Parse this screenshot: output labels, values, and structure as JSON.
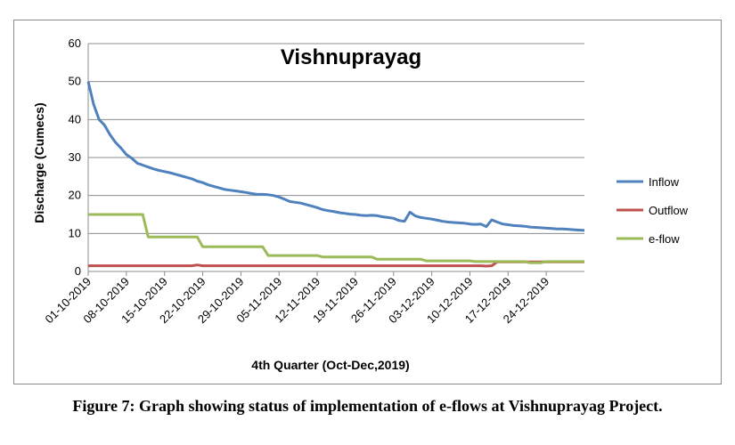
{
  "caption": "Figure 7: Graph showing status of implementation of e-flows at Vishnuprayag Project.",
  "chart_data": {
    "type": "line",
    "title": "Vishnuprayag",
    "xlabel": "4th Quarter (Oct-Dec,2019)",
    "ylabel": "Discharge (Cumecs)",
    "ylim": [
      0,
      60
    ],
    "yticks": [
      0,
      10,
      20,
      30,
      40,
      50,
      60
    ],
    "x_start": "01-10-2019",
    "x_end": "31-12-2019",
    "xticks": [
      "01-10-2019",
      "08-10-2019",
      "15-10-2019",
      "22-10-2019",
      "29-10-2019",
      "05-11-2019",
      "12-11-2019",
      "19-11-2019",
      "26-11-2019",
      "03-12-2019",
      "10-12-2019",
      "17-12-2019",
      "24-12-2019"
    ],
    "grid": true,
    "legend_position": "right",
    "series": [
      {
        "name": "Inflow",
        "color": "#4f81bd",
        "points": [
          [
            "01-10-2019",
            50
          ],
          [
            "02-10-2019",
            44
          ],
          [
            "03-10-2019",
            40
          ],
          [
            "04-10-2019",
            38.5
          ],
          [
            "05-10-2019",
            36
          ],
          [
            "06-10-2019",
            34
          ],
          [
            "07-10-2019",
            32.5
          ],
          [
            "08-10-2019",
            30.8
          ],
          [
            "09-10-2019",
            29.8
          ],
          [
            "10-10-2019",
            28.5
          ],
          [
            "11-10-2019",
            28
          ],
          [
            "12-10-2019",
            27.5
          ],
          [
            "13-10-2019",
            27
          ],
          [
            "14-10-2019",
            26.6
          ],
          [
            "15-10-2019",
            26.3
          ],
          [
            "16-10-2019",
            26
          ],
          [
            "17-10-2019",
            25.6
          ],
          [
            "18-10-2019",
            25.2
          ],
          [
            "19-10-2019",
            24.8
          ],
          [
            "20-10-2019",
            24.4
          ],
          [
            "21-10-2019",
            23.8
          ],
          [
            "22-10-2019",
            23.4
          ],
          [
            "23-10-2019",
            22.8
          ],
          [
            "24-10-2019",
            22.4
          ],
          [
            "25-10-2019",
            22
          ],
          [
            "26-10-2019",
            21.6
          ],
          [
            "27-10-2019",
            21.4
          ],
          [
            "28-10-2019",
            21.2
          ],
          [
            "29-10-2019",
            21
          ],
          [
            "30-10-2019",
            20.8
          ],
          [
            "31-10-2019",
            20.5
          ],
          [
            "01-11-2019",
            20.3
          ],
          [
            "02-11-2019",
            20.3
          ],
          [
            "03-11-2019",
            20.2
          ],
          [
            "04-11-2019",
            20
          ],
          [
            "05-11-2019",
            19.6
          ],
          [
            "06-11-2019",
            19
          ],
          [
            "07-11-2019",
            18.4
          ],
          [
            "08-11-2019",
            18.2
          ],
          [
            "09-11-2019",
            18
          ],
          [
            "10-11-2019",
            17.6
          ],
          [
            "11-11-2019",
            17.2
          ],
          [
            "12-11-2019",
            16.8
          ],
          [
            "13-11-2019",
            16.3
          ],
          [
            "14-11-2019",
            16
          ],
          [
            "15-11-2019",
            15.8
          ],
          [
            "16-11-2019",
            15.5
          ],
          [
            "17-11-2019",
            15.3
          ],
          [
            "18-11-2019",
            15.1
          ],
          [
            "19-11-2019",
            15
          ],
          [
            "20-11-2019",
            14.8
          ],
          [
            "21-11-2019",
            14.7
          ],
          [
            "22-11-2019",
            14.8
          ],
          [
            "23-11-2019",
            14.7
          ],
          [
            "24-11-2019",
            14.4
          ],
          [
            "25-11-2019",
            14.2
          ],
          [
            "26-11-2019",
            14
          ],
          [
            "27-11-2019",
            13.4
          ],
          [
            "28-11-2019",
            13.2
          ],
          [
            "29-11-2019",
            15.6
          ],
          [
            "30-11-2019",
            14.6
          ],
          [
            "01-12-2019",
            14.2
          ],
          [
            "02-12-2019",
            14
          ],
          [
            "03-12-2019",
            13.8
          ],
          [
            "04-12-2019",
            13.5
          ],
          [
            "05-12-2019",
            13.2
          ],
          [
            "06-12-2019",
            13
          ],
          [
            "07-12-2019",
            12.9
          ],
          [
            "08-12-2019",
            12.8
          ],
          [
            "09-12-2019",
            12.7
          ],
          [
            "10-12-2019",
            12.5
          ],
          [
            "11-12-2019",
            12.4
          ],
          [
            "12-12-2019",
            12.5
          ],
          [
            "13-12-2019",
            11.8
          ],
          [
            "14-12-2019",
            13.6
          ],
          [
            "15-12-2019",
            13
          ],
          [
            "16-12-2019",
            12.5
          ],
          [
            "17-12-2019",
            12.3
          ],
          [
            "18-12-2019",
            12.1
          ],
          [
            "19-12-2019",
            12
          ],
          [
            "20-12-2019",
            11.9
          ],
          [
            "21-12-2019",
            11.7
          ],
          [
            "22-12-2019",
            11.6
          ],
          [
            "23-12-2019",
            11.5
          ],
          [
            "24-12-2019",
            11.4
          ],
          [
            "25-12-2019",
            11.3
          ],
          [
            "26-12-2019",
            11.2
          ],
          [
            "27-12-2019",
            11.2
          ],
          [
            "28-12-2019",
            11.1
          ],
          [
            "29-12-2019",
            11
          ],
          [
            "30-12-2019",
            10.9
          ],
          [
            "31-12-2019",
            10.8
          ]
        ]
      },
      {
        "name": "Outflow",
        "color": "#c0504d",
        "points": [
          [
            "01-10-2019",
            1.5
          ],
          [
            "20-10-2019",
            1.5
          ],
          [
            "21-10-2019",
            1.7
          ],
          [
            "22-10-2019",
            1.5
          ],
          [
            "12-12-2019",
            1.5
          ],
          [
            "13-12-2019",
            1.4
          ],
          [
            "14-12-2019",
            1.5
          ],
          [
            "15-12-2019",
            2.5
          ],
          [
            "31-12-2019",
            2.5
          ]
        ]
      },
      {
        "name": "e-flow",
        "color": "#9bbb59",
        "points": [
          [
            "01-10-2019",
            15
          ],
          [
            "11-10-2019",
            15
          ],
          [
            "12-10-2019",
            9.1
          ],
          [
            "21-10-2019",
            9.1
          ],
          [
            "22-10-2019",
            6.5
          ],
          [
            "02-11-2019",
            6.5
          ],
          [
            "03-11-2019",
            4.2
          ],
          [
            "12-11-2019",
            4.2
          ],
          [
            "13-11-2019",
            3.8
          ],
          [
            "22-11-2019",
            3.8
          ],
          [
            "23-11-2019",
            3.2
          ],
          [
            "01-12-2019",
            3.2
          ],
          [
            "02-12-2019",
            2.8
          ],
          [
            "10-12-2019",
            2.8
          ],
          [
            "11-12-2019",
            2.6
          ],
          [
            "20-12-2019",
            2.6
          ],
          [
            "21-12-2019",
            2.3
          ],
          [
            "23-12-2019",
            2.3
          ],
          [
            "24-12-2019",
            2.6
          ],
          [
            "31-12-2019",
            2.6
          ]
        ]
      }
    ]
  }
}
